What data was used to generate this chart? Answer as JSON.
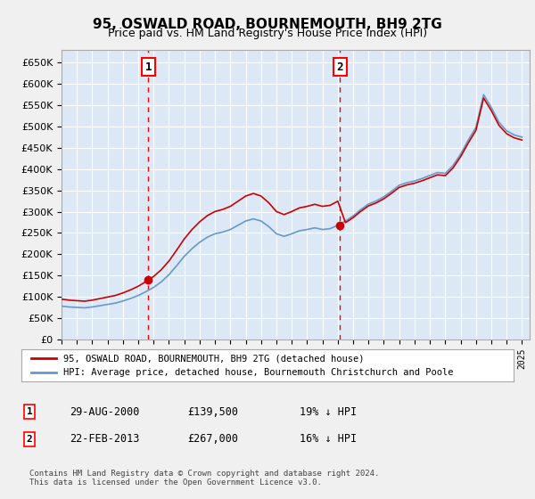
{
  "title": "95, OSWALD ROAD, BOURNEMOUTH, BH9 2TG",
  "subtitle": "Price paid vs. HM Land Registry's House Price Index (HPI)",
  "ylabel": "",
  "background_color": "#e8f0f8",
  "plot_bg_color": "#dce8f5",
  "grid_color": "#ffffff",
  "hpi_color": "#6699cc",
  "price_color": "#cc0000",
  "ylim": [
    0,
    680000
  ],
  "yticks": [
    0,
    50000,
    100000,
    150000,
    200000,
    250000,
    300000,
    350000,
    400000,
    450000,
    500000,
    550000,
    600000,
    650000
  ],
  "sale1_date": 2000.66,
  "sale1_price": 139500,
  "sale1_label": "1",
  "sale2_date": 2013.14,
  "sale2_price": 267000,
  "sale2_label": "2",
  "legend_price_label": "95, OSWALD ROAD, BOURNEMOUTH, BH9 2TG (detached house)",
  "legend_hpi_label": "HPI: Average price, detached house, Bournemouth Christchurch and Poole",
  "table_row1": [
    "1",
    "29-AUG-2000",
    "£139,500",
    "19% ↓ HPI"
  ],
  "table_row2": [
    "2",
    "22-FEB-2013",
    "£267,000",
    "16% ↓ HPI"
  ],
  "footer": "Contains HM Land Registry data © Crown copyright and database right 2024.\nThis data is licensed under the Open Government Licence v3.0.",
  "xmin": 1995,
  "xmax": 2025.5
}
